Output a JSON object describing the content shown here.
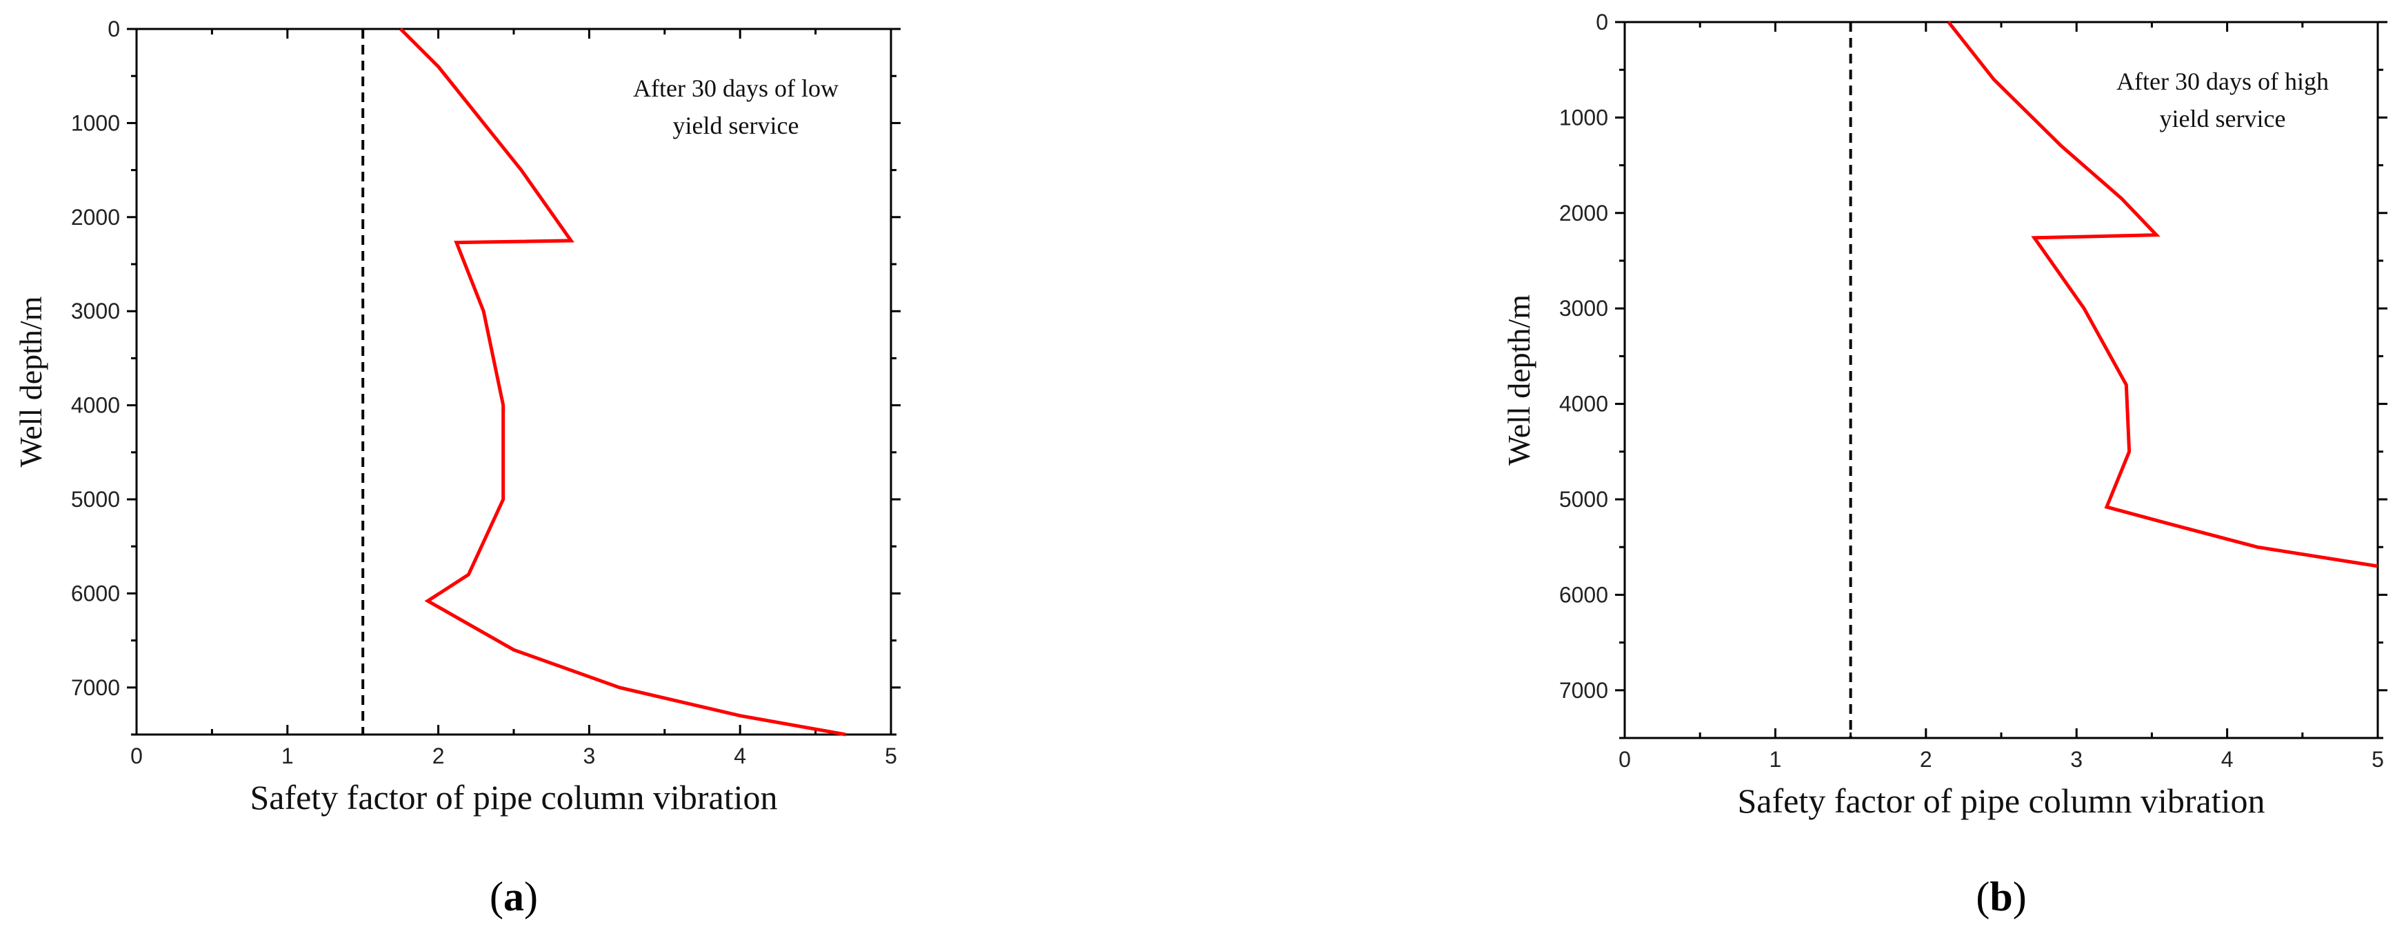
{
  "chart_data": [
    {
      "type": "line",
      "title": "",
      "xlabel": "Safety factor of pipe column vibration",
      "ylabel": "Well depth/m",
      "xlim": [
        0,
        5
      ],
      "ylim": [
        0,
        7500
      ],
      "y_inverted": true,
      "xticks": [
        "0",
        "1",
        "2",
        "3",
        "4",
        "5"
      ],
      "yticks": [
        "0",
        "1000",
        "2000",
        "3000",
        "4000",
        "5000",
        "6000",
        "7000"
      ],
      "annotation": [
        "After 30 days of low",
        "yield service"
      ],
      "caption": {
        "open": "(",
        "letter": "a",
        "close": ")"
      },
      "threshold": {
        "x": 1.5,
        "style": "dashed",
        "color": "#000000"
      },
      "series": [
        {
          "color": "#ff0000",
          "points": [
            [
              1.75,
              0
            ],
            [
              2.0,
              400
            ],
            [
              2.25,
              900
            ],
            [
              2.55,
              1500
            ],
            [
              2.88,
              2250
            ],
            [
              2.12,
              2270
            ],
            [
              2.3,
              3000
            ],
            [
              2.43,
              4000
            ],
            [
              2.43,
              5000
            ],
            [
              2.2,
              5800
            ],
            [
              1.93,
              6080
            ],
            [
              2.5,
              6600
            ],
            [
              3.2,
              7000
            ],
            [
              4.0,
              7300
            ],
            [
              4.7,
              7500
            ]
          ]
        }
      ]
    },
    {
      "type": "line",
      "title": "",
      "xlabel": "Safety factor of pipe column vibration",
      "ylabel": "Well depth/m",
      "xlim": [
        0,
        5
      ],
      "ylim": [
        0,
        7500
      ],
      "y_inverted": true,
      "xticks": [
        "0",
        "1",
        "2",
        "3",
        "4",
        "5"
      ],
      "yticks": [
        "0",
        "1000",
        "2000",
        "3000",
        "4000",
        "5000",
        "6000",
        "7000"
      ],
      "annotation": [
        "After 30 days of high",
        "yield service"
      ],
      "caption": {
        "open": "(",
        "letter": "b",
        "close": ")"
      },
      "threshold": {
        "x": 1.5,
        "style": "dashed",
        "color": "#000000"
      },
      "series": [
        {
          "color": "#ff0000",
          "points": [
            [
              2.15,
              0
            ],
            [
              2.45,
              600
            ],
            [
              2.9,
              1300
            ],
            [
              3.3,
              1850
            ],
            [
              3.53,
              2230
            ],
            [
              2.72,
              2260
            ],
            [
              3.05,
              3000
            ],
            [
              3.33,
              3800
            ],
            [
              3.35,
              4500
            ],
            [
              3.2,
              5080
            ],
            [
              3.6,
              5250
            ],
            [
              4.2,
              5500
            ],
            [
              5.0,
              5700
            ]
          ]
        }
      ]
    }
  ]
}
